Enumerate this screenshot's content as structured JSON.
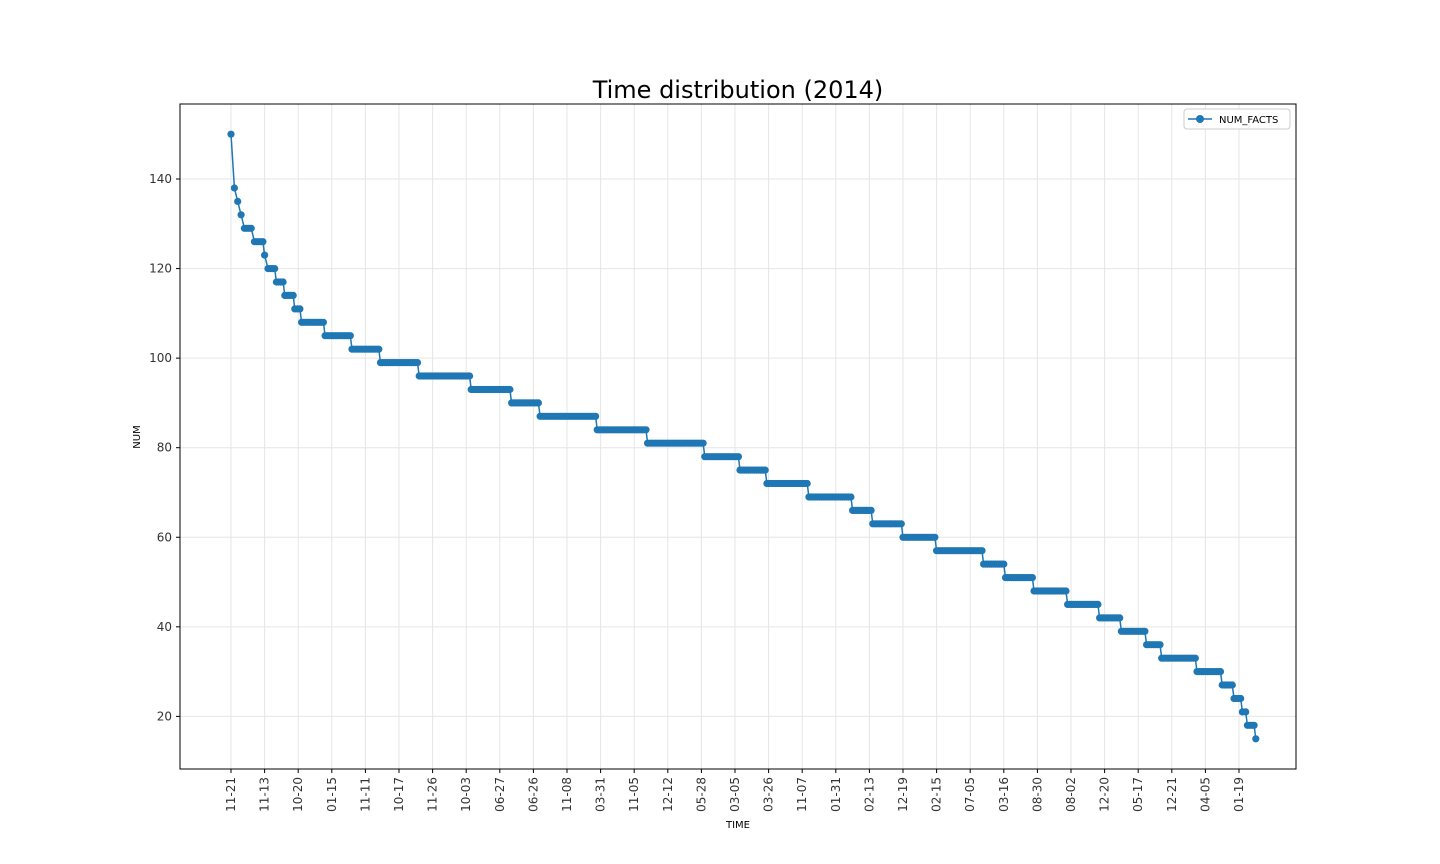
{
  "chart_data": {
    "type": "line",
    "title": "Time distribution (2014)",
    "xlabel": "TIME",
    "ylabel": "NUM",
    "ylim": [
      8.25,
      156.75
    ],
    "yticks": [
      20,
      40,
      60,
      80,
      100,
      120,
      140
    ],
    "xtick_labels": [
      "11-21",
      "11-13",
      "10-20",
      "01-15",
      "11-11",
      "10-17",
      "11-26",
      "10-03",
      "06-27",
      "06-26",
      "11-08",
      "03-31",
      "11-05",
      "12-12",
      "05-28",
      "03-05",
      "03-26",
      "11-07",
      "01-31",
      "02-13",
      "12-19",
      "02-15",
      "07-05",
      "03-16",
      "08-30",
      "08-02",
      "12-20",
      "05-17",
      "12-21",
      "04-05",
      "01-19"
    ],
    "grid": true,
    "legend_position": "top-right",
    "color": "#1f77b4",
    "series": [
      {
        "name": "NUM_FACTS",
        "points": [
          [
            0,
            150
          ],
          [
            0.1,
            138
          ],
          [
            0.2,
            135
          ],
          [
            0.3,
            132
          ],
          [
            0.4,
            129
          ],
          [
            0.6,
            129
          ],
          [
            0.7,
            126
          ],
          [
            0.95,
            126
          ],
          [
            1.0,
            123
          ],
          [
            1.1,
            120
          ],
          [
            1.3,
            120
          ],
          [
            1.35,
            117
          ],
          [
            1.55,
            117
          ],
          [
            1.6,
            114
          ],
          [
            1.85,
            114
          ],
          [
            1.9,
            111
          ],
          [
            2.05,
            111
          ],
          [
            2.1,
            108
          ],
          [
            2.75,
            108
          ],
          [
            2.8,
            105
          ],
          [
            3.55,
            105
          ],
          [
            3.6,
            102
          ],
          [
            4.4,
            102
          ],
          [
            4.45,
            99
          ],
          [
            5.55,
            99
          ],
          [
            5.6,
            96
          ],
          [
            7.1,
            96
          ],
          [
            7.15,
            93
          ],
          [
            8.3,
            93
          ],
          [
            8.35,
            90
          ],
          [
            9.15,
            90
          ],
          [
            9.2,
            87
          ],
          [
            10.85,
            87
          ],
          [
            10.9,
            84
          ],
          [
            12.35,
            84
          ],
          [
            12.4,
            81
          ],
          [
            14.05,
            81
          ],
          [
            14.1,
            78
          ],
          [
            15.1,
            78
          ],
          [
            15.15,
            75
          ],
          [
            15.9,
            75
          ],
          [
            15.95,
            72
          ],
          [
            17.15,
            72
          ],
          [
            17.2,
            69
          ],
          [
            18.45,
            69
          ],
          [
            18.5,
            66
          ],
          [
            19.05,
            66
          ],
          [
            19.1,
            63
          ],
          [
            19.95,
            63
          ],
          [
            20.0,
            60
          ],
          [
            20.95,
            60
          ],
          [
            21.0,
            57
          ],
          [
            22.35,
            57
          ],
          [
            22.4,
            54
          ],
          [
            23.0,
            54
          ],
          [
            23.05,
            51
          ],
          [
            23.85,
            51
          ],
          [
            23.9,
            48
          ],
          [
            24.85,
            48
          ],
          [
            24.9,
            45
          ],
          [
            25.8,
            45
          ],
          [
            25.85,
            42
          ],
          [
            26.45,
            42
          ],
          [
            26.5,
            39
          ],
          [
            27.2,
            39
          ],
          [
            27.25,
            36
          ],
          [
            27.65,
            36
          ],
          [
            27.7,
            33
          ],
          [
            28.7,
            33
          ],
          [
            28.75,
            30
          ],
          [
            29.45,
            30
          ],
          [
            29.5,
            27
          ],
          [
            29.8,
            27
          ],
          [
            29.85,
            24
          ],
          [
            30.05,
            24
          ],
          [
            30.1,
            21
          ],
          [
            30.2,
            21
          ],
          [
            30.25,
            18
          ],
          [
            30.45,
            18
          ],
          [
            30.5,
            15
          ]
        ]
      }
    ]
  }
}
